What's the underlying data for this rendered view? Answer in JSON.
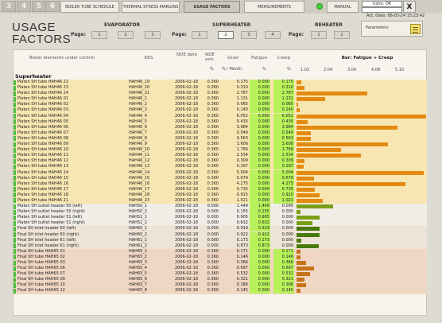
{
  "topbar": {
    "num_tabs": [
      "3",
      "4",
      "5",
      "6"
    ],
    "nav_tabs": [
      {
        "label": "BOILER TUBE SCHEDULE",
        "active": false
      },
      {
        "label": "THERMAL STRESS MARGINS",
        "active": false
      },
      {
        "label": "USAGE FACTORS",
        "active": true
      },
      {
        "label": "MEASUREMENTS",
        "active": false
      },
      {
        "label": "MANUAL",
        "active": false
      }
    ],
    "conn_status": "Conn. OK",
    "close_label": "X",
    "act_date": "Act. Date: 06-03-24 15:23:42"
  },
  "header": {
    "title": "USAGE FACTORS",
    "groups": [
      {
        "name": "EVAPORATOR",
        "page_label": "Page:",
        "pages": [
          "1",
          "2",
          "3"
        ],
        "active_page": null
      },
      {
        "name": "SUPERHEATER",
        "page_label": "Page:",
        "pages": [
          "1",
          "2",
          "3",
          "4"
        ],
        "active_page": "2"
      },
      {
        "name": "REHEATER",
        "page_label": "Page:",
        "pages": [
          "1",
          "2"
        ],
        "active_page": null
      }
    ],
    "params_label": "Parameters"
  },
  "table": {
    "columns": {
      "element": "Boiler elements under control",
      "kks": "KKS",
      "nde_date": "NDE date",
      "nde_exh": "NDE exh.",
      "grad": "Grad",
      "fatigue": "Fatigue",
      "creep": "Creep",
      "bar": "Bar: Fatigue + Creep"
    },
    "units": {
      "exh": "%",
      "grad": "% / Month",
      "fatigue": "%",
      "creep": "%"
    },
    "bar_ticks": [
      "1.02",
      "2.04",
      "3.06",
      "4.08",
      "5.10"
    ],
    "bar_max": 5.1,
    "section": "Superheater",
    "colors": {
      "tube": "#f7e6b2",
      "outlet": "#efede6",
      "inlet": "#ede3d6",
      "final": "#f0d7c3",
      "bar_orange": "#e38a12",
      "bar_olive": "#7a9e16",
      "bar_dark": "#4a7a0c",
      "bar_brown": "#c7731a",
      "fatigue_fill": "#b8f25a",
      "marker": "#4fbf3c"
    },
    "rows": [
      {
        "name": "Platen SH tube HAH46 22",
        "kks": "HAH46_19",
        "date": "2006-02-18",
        "exh": "0.360",
        "grad": "0.175",
        "fatigue": "0.000",
        "creep": "0.175",
        "total": 0.175,
        "group": "tube"
      },
      {
        "name": "Platen SH tube HAH46 23",
        "kks": "HAH46_20",
        "date": "2006-02-18",
        "exh": "0.360",
        "grad": "0.310",
        "fatigue": "0.000",
        "creep": "0.310",
        "total": 0.31,
        "group": "tube"
      },
      {
        "name": "Platen SH tube HAH46 24",
        "kks": "HAH46_21",
        "date": "2006-02-18",
        "exh": "0.360",
        "grad": "2.787",
        "fatigue": "0.000",
        "creep": "2.787",
        "total": 2.787,
        "group": "tube"
      },
      {
        "name": "Platen SH tube HAH46 01",
        "kks": "HAH46_1",
        "date": "2006-02-18",
        "exh": "0.360",
        "grad": "1.131",
        "fatigue": "0.000",
        "creep": "1.131",
        "total": 1.131,
        "group": "tube"
      },
      {
        "name": "Platen SH tube HAH46 02",
        "kks": "HAH46_2",
        "date": "2006-02-18",
        "exh": "0.360",
        "grad": "0.065",
        "fatigue": "0.000",
        "creep": "0.065",
        "total": 0.065,
        "group": "tube"
      },
      {
        "name": "Platen SH tube HAH46 03",
        "kks": "HAH46_3",
        "date": "2006-02-18",
        "exh": "0.360",
        "grad": "0.140",
        "fatigue": "0.000",
        "creep": "0.140",
        "total": 0.14,
        "group": "tube"
      },
      {
        "name": "Platen SH tube HAH46 04",
        "kks": "HAH46_4",
        "date": "2006-02-18",
        "exh": "0.360",
        "grad": "6.052",
        "fatigue": "0.000",
        "creep": "6.052",
        "total": 5.1,
        "group": "tube"
      },
      {
        "name": "Platen SH tube HAH46 05",
        "kks": "HAH46_5",
        "date": "2006-02-18",
        "exh": "0.360",
        "grad": "0.435",
        "fatigue": "0.000",
        "creep": "0.435",
        "total": 0.435,
        "group": "tube"
      },
      {
        "name": "Platen SH tube HAH46 06",
        "kks": "HAH46_6",
        "date": "2006-02-18",
        "exh": "0.360",
        "grad": "3.984",
        "fatigue": "0.000",
        "creep": "3.984",
        "total": 3.984,
        "group": "tube"
      },
      {
        "name": "Platen SH tube HAH46 07",
        "kks": "HAH46_7",
        "date": "2006-02-18",
        "exh": "0.360",
        "grad": "0.549",
        "fatigue": "0.000",
        "creep": "0.549",
        "total": 0.549,
        "group": "tube"
      },
      {
        "name": "Platen SH tube HAH46 08",
        "kks": "HAH46_8",
        "date": "2006-02-18",
        "exh": "0.360",
        "grad": "0.563",
        "fatigue": "0.000",
        "creep": "0.563",
        "total": 0.563,
        "group": "tube"
      },
      {
        "name": "Platen SH tube HAH46 09",
        "kks": "HAH46_9",
        "date": "2006-02-18",
        "exh": "0.360",
        "grad": "3.606",
        "fatigue": "0.000",
        "creep": "3.606",
        "total": 3.606,
        "group": "tube"
      },
      {
        "name": "Platen SH tube HAH46 10",
        "kks": "HAH46_10",
        "date": "2006-02-18",
        "exh": "0.360",
        "grad": "1.766",
        "fatigue": "0.000",
        "creep": "1.766",
        "total": 1.766,
        "group": "tube"
      },
      {
        "name": "Platen SH tube HAH46 11",
        "kks": "HAH46_11",
        "date": "2006-02-18",
        "exh": "0.360",
        "grad": "2.534",
        "fatigue": "0.000",
        "creep": "2.534",
        "total": 2.534,
        "group": "tube"
      },
      {
        "name": "Platen SH tube HAH46 12",
        "kks": "HAH46_12",
        "date": "2006-02-18",
        "exh": "0.360",
        "grad": "0.309",
        "fatigue": "0.000",
        "creep": "0.309",
        "total": 0.309,
        "group": "tube"
      },
      {
        "name": "Platen SH tube HAH46 13",
        "kks": "HAH46_13",
        "date": "2006-02-18",
        "exh": "0.360",
        "grad": "0.297",
        "fatigue": "0.000",
        "creep": "0.297",
        "total": 0.297,
        "group": "tube"
      },
      {
        "name": "Platen SH tube HAH46 14",
        "kks": "HAH46_14",
        "date": "2006-02-18",
        "exh": "0.360",
        "grad": "5.004",
        "fatigue": "0.000",
        "creep": "5.004",
        "total": 5.004,
        "group": "tube"
      },
      {
        "name": "Platen SH tube HAH46 15",
        "kks": "HAH46_15",
        "date": "2006-02-18",
        "exh": "0.360",
        "grad": "0.679",
        "fatigue": "0.000",
        "creep": "0.679",
        "total": 0.679,
        "group": "tube"
      },
      {
        "name": "Platen SH tube HAH46 16",
        "kks": "HAH46_16",
        "date": "2006-02-18",
        "exh": "0.360",
        "grad": "4.275",
        "fatigue": "0.000",
        "creep": "4.275",
        "total": 4.275,
        "group": "tube"
      },
      {
        "name": "Platen SH tube HAH46 17",
        "kks": "HAH46_17",
        "date": "2006-02-18",
        "exh": "0.360",
        "grad": "0.735",
        "fatigue": "0.000",
        "creep": "0.735",
        "total": 0.735,
        "group": "tube"
      },
      {
        "name": "Platen SH tube HAH46 18",
        "kks": "HAH46_18",
        "date": "2006-02-18",
        "exh": "0.360",
        "grad": "0.915",
        "fatigue": "0.000",
        "creep": "0.915",
        "total": 0.915,
        "group": "tube"
      },
      {
        "name": "Platen SH tube HAH46 21",
        "kks": "HAH46_23",
        "date": "2006-02-18",
        "exh": "0.360",
        "grad": "1.021",
        "fatigue": "0.000",
        "creep": "1.021",
        "total": 1.021,
        "group": "tube"
      },
      {
        "name": "Platen SH outlet header 50 (left)",
        "kks": "HAH50_1",
        "date": "2006-02-18",
        "exh": "0.000",
        "grad": "1.449",
        "fatigue": "1.449",
        "creep": "0.000",
        "total": 1.449,
        "group": "outlet"
      },
      {
        "name": "Platen SH outlet header 50 (right)",
        "kks": "HAH50_2",
        "date": "2006-02-18",
        "exh": "0.000",
        "grad": "0.155",
        "fatigue": "0.155",
        "creep": "0.000",
        "total": 0.155,
        "group": "outlet"
      },
      {
        "name": "Platen SH outlet header 51 (left)",
        "kks": "HAH51_1",
        "date": "2006-02-18",
        "exh": "0.000",
        "grad": "0.905",
        "fatigue": "0.905",
        "creep": "0.000",
        "total": 0.905,
        "group": "outlet"
      },
      {
        "name": "Platen SH outlet header 51 (right)",
        "kks": "HAH51_2",
        "date": "2006-02-18",
        "exh": "0.000",
        "grad": "0.632",
        "fatigue": "0.632",
        "creep": "0.000",
        "total": 0.632,
        "group": "outlet"
      },
      {
        "name": "Final SH inlet header 60 (left)",
        "kks": "HAH60_1",
        "date": "2006-02-18",
        "exh": "0.000",
        "grad": "0.919",
        "fatigue": "0.919",
        "creep": "0.000",
        "total": 0.919,
        "group": "inlet"
      },
      {
        "name": "Final SH inlet header 60 (right)",
        "kks": "HAH60_2",
        "date": "2006-02-18",
        "exh": "0.000",
        "grad": "0.922",
        "fatigue": "0.922",
        "creep": "0.000",
        "total": 0.922,
        "group": "inlet"
      },
      {
        "name": "Final SH inlet header 61 (left)",
        "kks": "HAH61_1",
        "date": "2006-02-18",
        "exh": "0.000",
        "grad": "0.173",
        "fatigue": "0.173",
        "creep": "0.000",
        "total": 0.173,
        "group": "inlet"
      },
      {
        "name": "Final SH inlet header 61 (right)",
        "kks": "HAH61_2",
        "date": "2006-02-18",
        "exh": "0.000",
        "grad": "0.873",
        "fatigue": "0.873",
        "creep": "0.000",
        "total": 0.873,
        "group": "inlet"
      },
      {
        "name": "Final SH tube HAH65 01",
        "kks": "HAH65_1",
        "date": "2006-02-18",
        "exh": "0.360",
        "grad": "0.171",
        "fatigue": "0.000",
        "creep": "0.171",
        "total": 0.171,
        "group": "final"
      },
      {
        "name": "Final SH tube HAH65 02",
        "kks": "HAH65_2",
        "date": "2006-02-18",
        "exh": "0.360",
        "grad": "0.146",
        "fatigue": "0.000",
        "creep": "0.146",
        "total": 0.146,
        "group": "final"
      },
      {
        "name": "Final SH tube HAH65 03",
        "kks": "HAH65_3",
        "date": "2006-02-18",
        "exh": "0.360",
        "grad": "0.366",
        "fatigue": "0.000",
        "creep": "0.366",
        "total": 0.366,
        "group": "final"
      },
      {
        "name": "Final SH tube HAH65 06",
        "kks": "HAH65_4",
        "date": "2006-02-18",
        "exh": "0.360",
        "grad": "0.697",
        "fatigue": "0.000",
        "creep": "0.697",
        "total": 0.697,
        "group": "final"
      },
      {
        "name": "Final SH tube HAH65 07",
        "kks": "HAH65_5",
        "date": "2006-02-18",
        "exh": "0.360",
        "grad": "0.532",
        "fatigue": "0.000",
        "creep": "0.532",
        "total": 0.532,
        "group": "final"
      },
      {
        "name": "Final SH tube HAH65 09",
        "kks": "HAH65_6",
        "date": "2006-02-18",
        "exh": "0.360",
        "grad": "0.321",
        "fatigue": "0.000",
        "creep": "0.321",
        "total": 0.321,
        "group": "final"
      },
      {
        "name": "Final SH tube HAH65 10",
        "kks": "HAH65_7",
        "date": "2006-02-18",
        "exh": "0.360",
        "grad": "0.386",
        "fatigue": "0.000",
        "creep": "0.386",
        "total": 0.386,
        "group": "final"
      },
      {
        "name": "Final SH tube HAH65 12",
        "kks": "HAH65_8",
        "date": "2006-02-18",
        "exh": "0.360",
        "grad": "0.145",
        "fatigue": "0.000",
        "creep": "0.145",
        "total": 0.145,
        "group": "final"
      }
    ]
  }
}
